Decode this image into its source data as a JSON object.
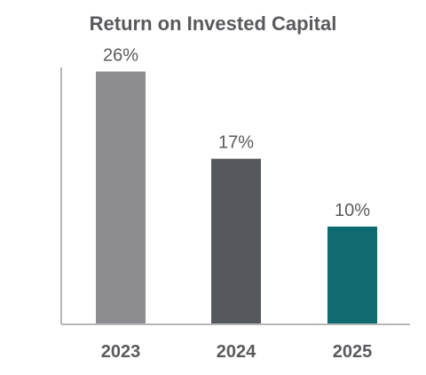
{
  "chart_data": {
    "type": "bar",
    "title": "Return on Invested Capital",
    "categories": [
      "2023",
      "2024",
      "2025"
    ],
    "values": [
      26,
      17,
      10
    ],
    "value_labels": [
      "26%",
      "17%",
      "10%"
    ],
    "ylim": [
      0,
      31
    ],
    "xlabel": "",
    "ylabel": "",
    "grid": false,
    "legend": "none",
    "colors": [
      "#8d8d91",
      "#55585d",
      "#0f6b70"
    ],
    "axis_color": "#b7b7b7"
  }
}
